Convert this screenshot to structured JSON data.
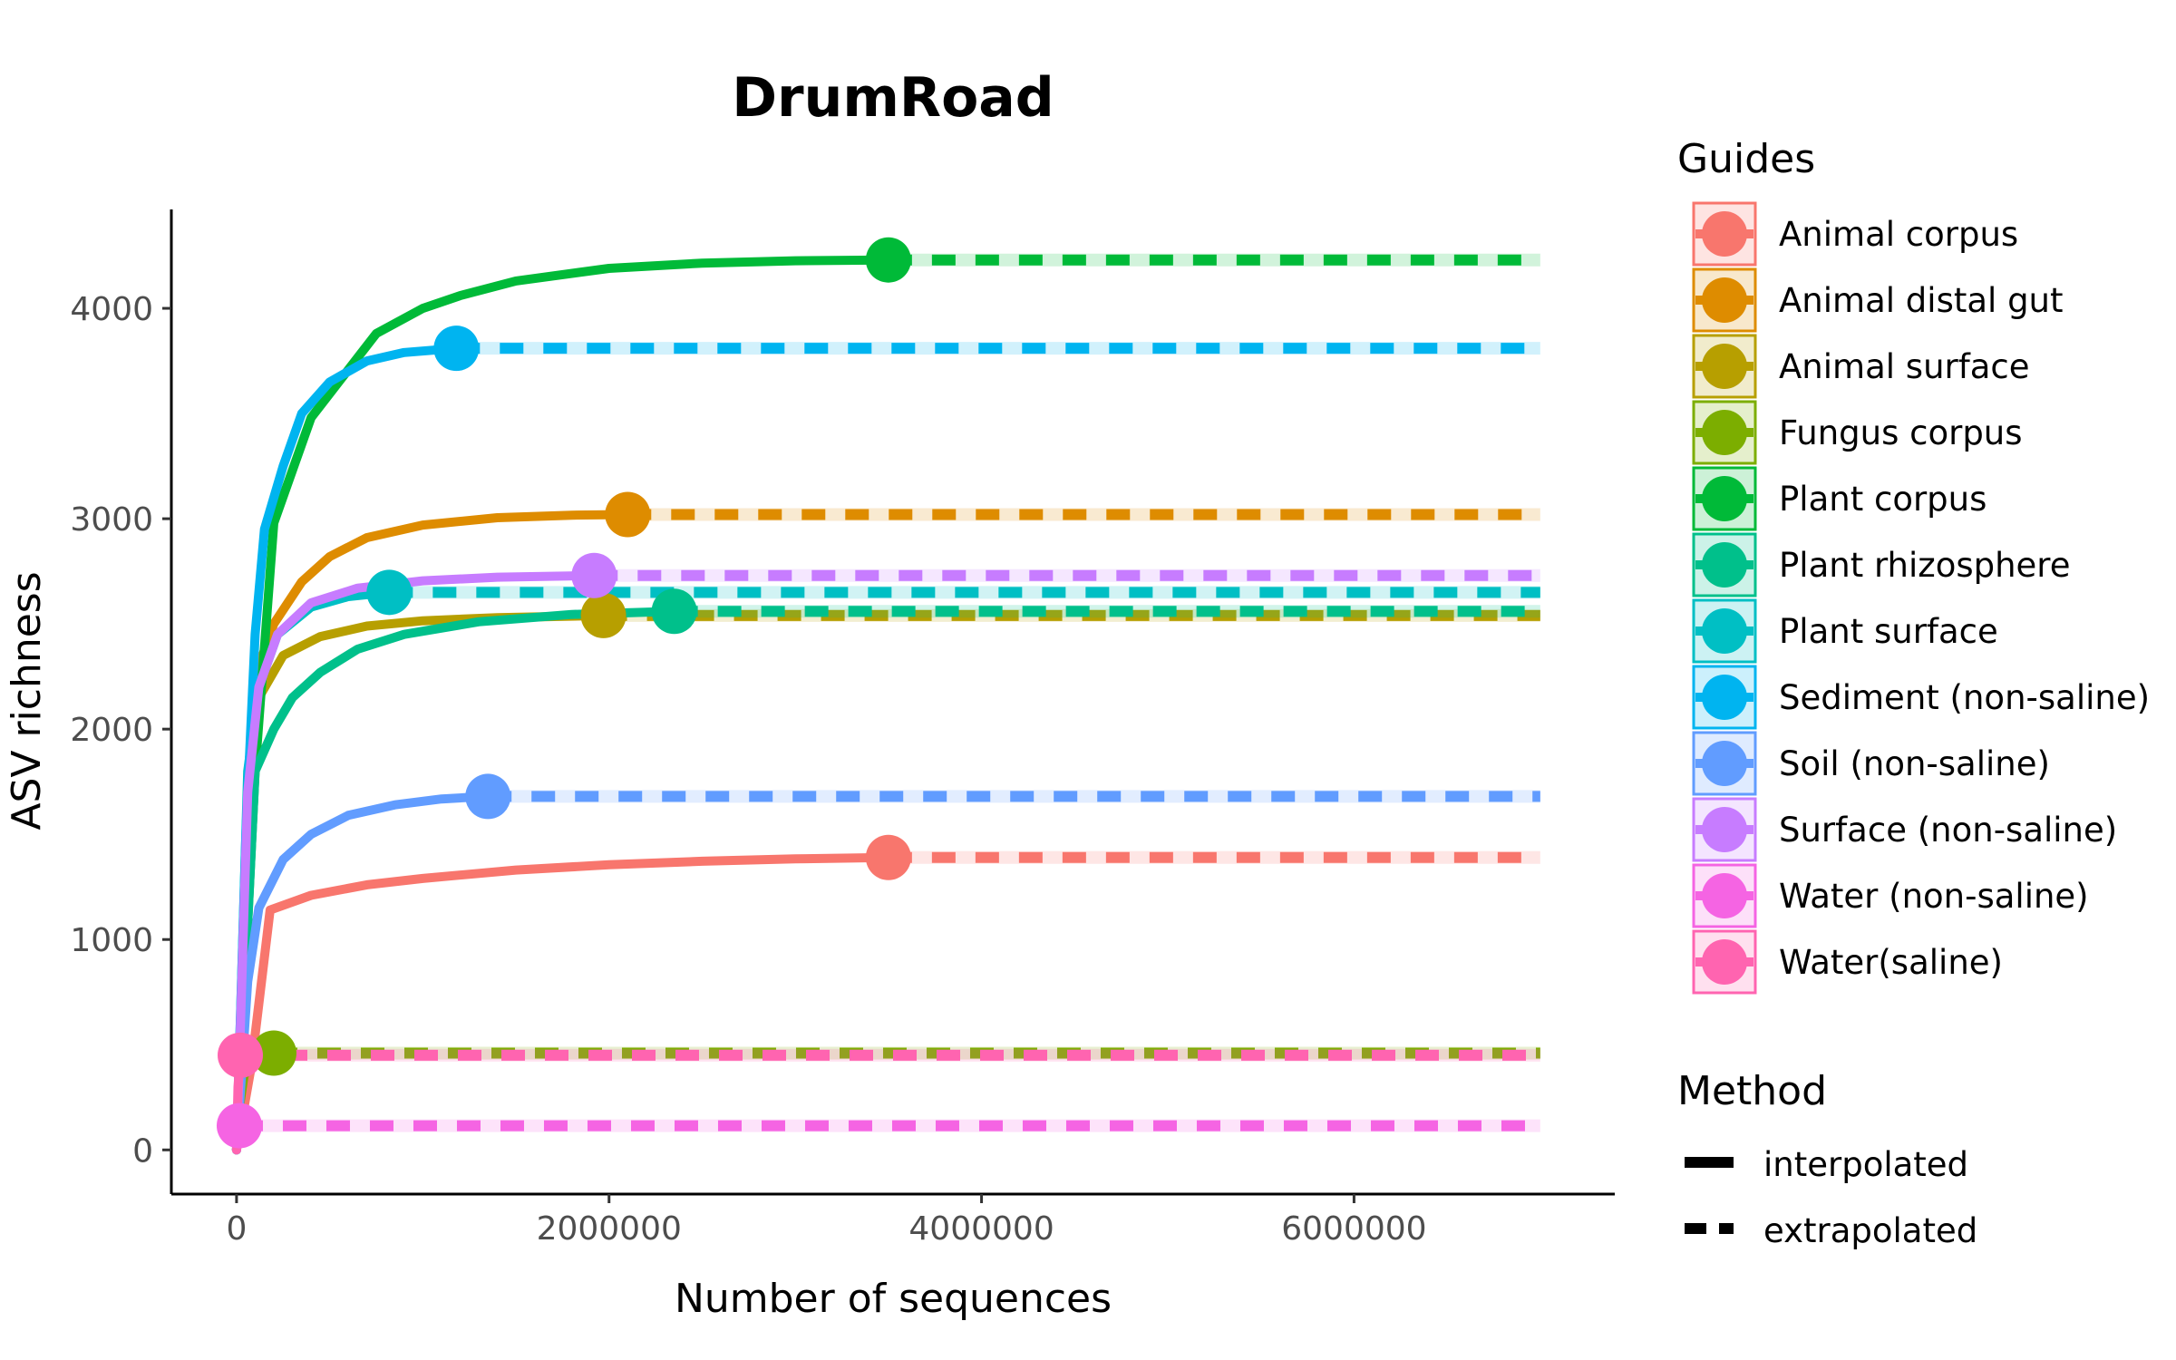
{
  "chart_data": {
    "type": "line",
    "title": "DrumRoad",
    "xlabel": "Number of sequences",
    "ylabel": "ASV richness",
    "xlim": [
      -350000,
      7400000
    ],
    "ylim": [
      -210,
      4470
    ],
    "x_ticks": [
      0,
      2000000,
      4000000,
      6000000
    ],
    "x_tick_labels": [
      "0",
      "2000000",
      "4000000",
      "6000000"
    ],
    "y_ticks": [
      0,
      1000,
      2000,
      3000,
      4000
    ],
    "y_tick_labels": [
      "0",
      "1000",
      "2000",
      "3000",
      "4000"
    ],
    "grid": false,
    "extrapolation_end": 7000000,
    "legend": {
      "position": "right",
      "guides_title": "Guides",
      "method_title": "Method",
      "method_labels": [
        "interpolated",
        "extrapolated"
      ]
    },
    "series": [
      {
        "name": "Animal corpus",
        "color": "#F8766D",
        "observed": [
          3500000,
          1390
        ],
        "interpolated": [
          [
            0,
            0
          ],
          [
            80000,
            400
          ],
          [
            180000,
            1140
          ],
          [
            400000,
            1210
          ],
          [
            700000,
            1260
          ],
          [
            1000000,
            1290
          ],
          [
            1500000,
            1330
          ],
          [
            2000000,
            1355
          ],
          [
            2500000,
            1372
          ],
          [
            3000000,
            1383
          ],
          [
            3500000,
            1390
          ]
        ]
      },
      {
        "name": "Animal distal gut",
        "color": "#DE8C00",
        "observed": [
          2100000,
          3020
        ],
        "interpolated": [
          [
            0,
            0
          ],
          [
            60000,
            1400
          ],
          [
            120000,
            2300
          ],
          [
            200000,
            2500
          ],
          [
            350000,
            2700
          ],
          [
            500000,
            2820
          ],
          [
            700000,
            2910
          ],
          [
            1000000,
            2970
          ],
          [
            1400000,
            3005
          ],
          [
            1800000,
            3017
          ],
          [
            2100000,
            3020
          ]
        ]
      },
      {
        "name": "Animal surface",
        "color": "#B79F00",
        "observed": [
          1970000,
          2540
        ],
        "interpolated": [
          [
            0,
            0
          ],
          [
            60000,
            1500
          ],
          [
            120000,
            2150
          ],
          [
            250000,
            2350
          ],
          [
            450000,
            2440
          ],
          [
            700000,
            2490
          ],
          [
            1000000,
            2515
          ],
          [
            1400000,
            2530
          ],
          [
            1970000,
            2540
          ]
        ]
      },
      {
        "name": "Fungus corpus",
        "color": "#7CAE00",
        "observed": [
          200000,
          460
        ],
        "interpolated": [
          [
            0,
            110
          ],
          [
            40000,
            350
          ],
          [
            80000,
            440
          ],
          [
            140000,
            455
          ],
          [
            200000,
            460
          ]
        ]
      },
      {
        "name": "Plant corpus",
        "color": "#00BA38",
        "observed": [
          3500000,
          4230
        ],
        "interpolated": [
          [
            0,
            0
          ],
          [
            100000,
            1800
          ],
          [
            200000,
            2980
          ],
          [
            400000,
            3480
          ],
          [
            750000,
            3880
          ],
          [
            1000000,
            4000
          ],
          [
            1200000,
            4060
          ],
          [
            1500000,
            4130
          ],
          [
            2000000,
            4190
          ],
          [
            2500000,
            4215
          ],
          [
            3000000,
            4226
          ],
          [
            3500000,
            4230
          ]
        ]
      },
      {
        "name": "Plant rhizosphere",
        "color": "#00C08B",
        "observed": [
          2350000,
          2560
        ],
        "interpolated": [
          [
            0,
            0
          ],
          [
            100000,
            1800
          ],
          [
            200000,
            2000
          ],
          [
            300000,
            2150
          ],
          [
            450000,
            2270
          ],
          [
            650000,
            2380
          ],
          [
            900000,
            2450
          ],
          [
            1300000,
            2510
          ],
          [
            1800000,
            2545
          ],
          [
            2350000,
            2560
          ]
        ]
      },
      {
        "name": "Plant surface",
        "color": "#00BFC4",
        "observed": [
          820000,
          2650
        ],
        "interpolated": [
          [
            0,
            0
          ],
          [
            60000,
            1800
          ],
          [
            120000,
            2200
          ],
          [
            220000,
            2450
          ],
          [
            400000,
            2580
          ],
          [
            600000,
            2630
          ],
          [
            820000,
            2650
          ]
        ]
      },
      {
        "name": "Sediment (non-saline)",
        "color": "#00B4F0",
        "observed": [
          1180000,
          3810
        ],
        "interpolated": [
          [
            0,
            0
          ],
          [
            50000,
            1500
          ],
          [
            100000,
            2450
          ],
          [
            150000,
            2950
          ],
          [
            250000,
            3250
          ],
          [
            350000,
            3500
          ],
          [
            500000,
            3650
          ],
          [
            700000,
            3750
          ],
          [
            900000,
            3790
          ],
          [
            1180000,
            3810
          ]
        ]
      },
      {
        "name": "Soil (non-saline)",
        "color": "#619CFF",
        "observed": [
          1350000,
          1680
        ],
        "interpolated": [
          [
            0,
            0
          ],
          [
            60000,
            800
          ],
          [
            120000,
            1150
          ],
          [
            250000,
            1380
          ],
          [
            400000,
            1500
          ],
          [
            600000,
            1590
          ],
          [
            850000,
            1640
          ],
          [
            1100000,
            1668
          ],
          [
            1350000,
            1680
          ]
        ]
      },
      {
        "name": "Surface (non-saline)",
        "color": "#C77CFF",
        "observed": [
          1920000,
          2730
        ],
        "interpolated": [
          [
            0,
            0
          ],
          [
            60000,
            1700
          ],
          [
            120000,
            2200
          ],
          [
            220000,
            2450
          ],
          [
            400000,
            2600
          ],
          [
            650000,
            2670
          ],
          [
            1000000,
            2705
          ],
          [
            1400000,
            2722
          ],
          [
            1920000,
            2730
          ]
        ]
      },
      {
        "name": "Water (non-saline)",
        "color": "#F564E3",
        "observed": [
          15000,
          115
        ],
        "interpolated": [
          [
            0,
            0
          ],
          [
            5000,
            80
          ],
          [
            15000,
            115
          ]
        ]
      },
      {
        "name": "Water(saline)",
        "color": "#FF64B0",
        "observed": [
          20000,
          450
        ],
        "interpolated": [
          [
            0,
            0
          ],
          [
            8000,
            300
          ],
          [
            20000,
            450
          ]
        ]
      }
    ]
  }
}
